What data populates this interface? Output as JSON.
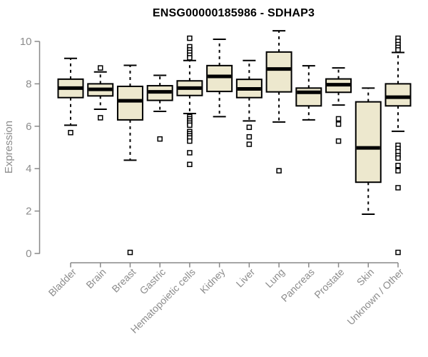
{
  "chart_data": {
    "type": "boxplot",
    "title": "ENSG00000185986 - SDHAP3",
    "ylabel": "Expression",
    "xlabel": "",
    "ylim": [
      0,
      10.6
    ],
    "yticks": [
      0,
      2,
      4,
      6,
      8,
      10
    ],
    "grid": false,
    "legend": null,
    "categories": [
      "Bladder",
      "Brain",
      "Breast",
      "Gastric",
      "Hematopoietic cells",
      "Kidney",
      "Liver",
      "Lung",
      "Pancreas",
      "Prostate",
      "Skin",
      "Unknown / Other"
    ],
    "series": [
      {
        "name": "Bladder",
        "whisker_low": 6.05,
        "q1": 7.35,
        "median": 7.8,
        "q3": 8.22,
        "whisker_high": 9.2,
        "outliers": [
          5.7
        ]
      },
      {
        "name": "Brain",
        "whisker_low": 6.8,
        "q1": 7.43,
        "median": 7.74,
        "q3": 8.0,
        "whisker_high": 8.56,
        "outliers": [
          8.75,
          6.4
        ]
      },
      {
        "name": "Breast",
        "whisker_low": 4.4,
        "q1": 6.3,
        "median": 7.2,
        "q3": 7.88,
        "whisker_high": 8.87,
        "outliers": [
          0.05
        ]
      },
      {
        "name": "Gastric",
        "whisker_low": 6.7,
        "q1": 7.22,
        "median": 7.62,
        "q3": 7.91,
        "whisker_high": 8.4,
        "outliers": [
          5.4
        ]
      },
      {
        "name": "Hematopoietic cells",
        "whisker_low": 6.6,
        "q1": 7.45,
        "median": 7.8,
        "q3": 8.14,
        "whisker_high": 9.1,
        "outliers": [
          10.15,
          9.75,
          9.6,
          9.48,
          9.35,
          9.23,
          6.45,
          6.35,
          6.25,
          6.15,
          6.05,
          5.75,
          5.65,
          5.55,
          5.45,
          5.3,
          4.75,
          4.2
        ]
      },
      {
        "name": "Kidney",
        "whisker_low": 6.45,
        "q1": 7.64,
        "median": 8.35,
        "q3": 8.86,
        "whisker_high": 10.1,
        "outliers": []
      },
      {
        "name": "Liver",
        "whisker_low": 6.25,
        "q1": 7.35,
        "median": 7.76,
        "q3": 8.21,
        "whisker_high": 9.1,
        "outliers": [
          5.95,
          5.5,
          5.15
        ]
      },
      {
        "name": "Lung",
        "whisker_low": 6.2,
        "q1": 7.62,
        "median": 8.7,
        "q3": 9.5,
        "whisker_high": 10.5,
        "outliers": [
          3.9
        ]
      },
      {
        "name": "Pancreas",
        "whisker_low": 6.3,
        "q1": 6.96,
        "median": 7.6,
        "q3": 7.8,
        "whisker_high": 8.85,
        "outliers": []
      },
      {
        "name": "Prostate",
        "whisker_low": 7.0,
        "q1": 7.6,
        "median": 7.96,
        "q3": 8.23,
        "whisker_high": 8.75,
        "outliers": [
          6.35,
          6.1,
          5.3
        ]
      },
      {
        "name": "Skin",
        "whisker_low": 1.85,
        "q1": 3.36,
        "median": 4.98,
        "q3": 7.15,
        "whisker_high": 7.8,
        "outliers": []
      },
      {
        "name": "Unknown / Other",
        "whisker_low": 5.76,
        "q1": 6.96,
        "median": 7.37,
        "q3": 8.0,
        "whisker_high": 9.48,
        "outliers": [
          10.15,
          10.0,
          9.85,
          9.72,
          9.6,
          5.1,
          4.95,
          4.8,
          4.62,
          4.5,
          4.15,
          3.9,
          3.1,
          0.05
        ]
      }
    ],
    "colors": {
      "box_fill": "#EDE8CE",
      "box_border": "#000000",
      "median": "#000000",
      "whisker": "#000000",
      "outlier_stroke": "#000000",
      "outlier_fill": "#ffffff",
      "axis": "#888888",
      "tick_text": "#8c8c8c",
      "title_text": "#000000",
      "background": "#ffffff"
    }
  }
}
